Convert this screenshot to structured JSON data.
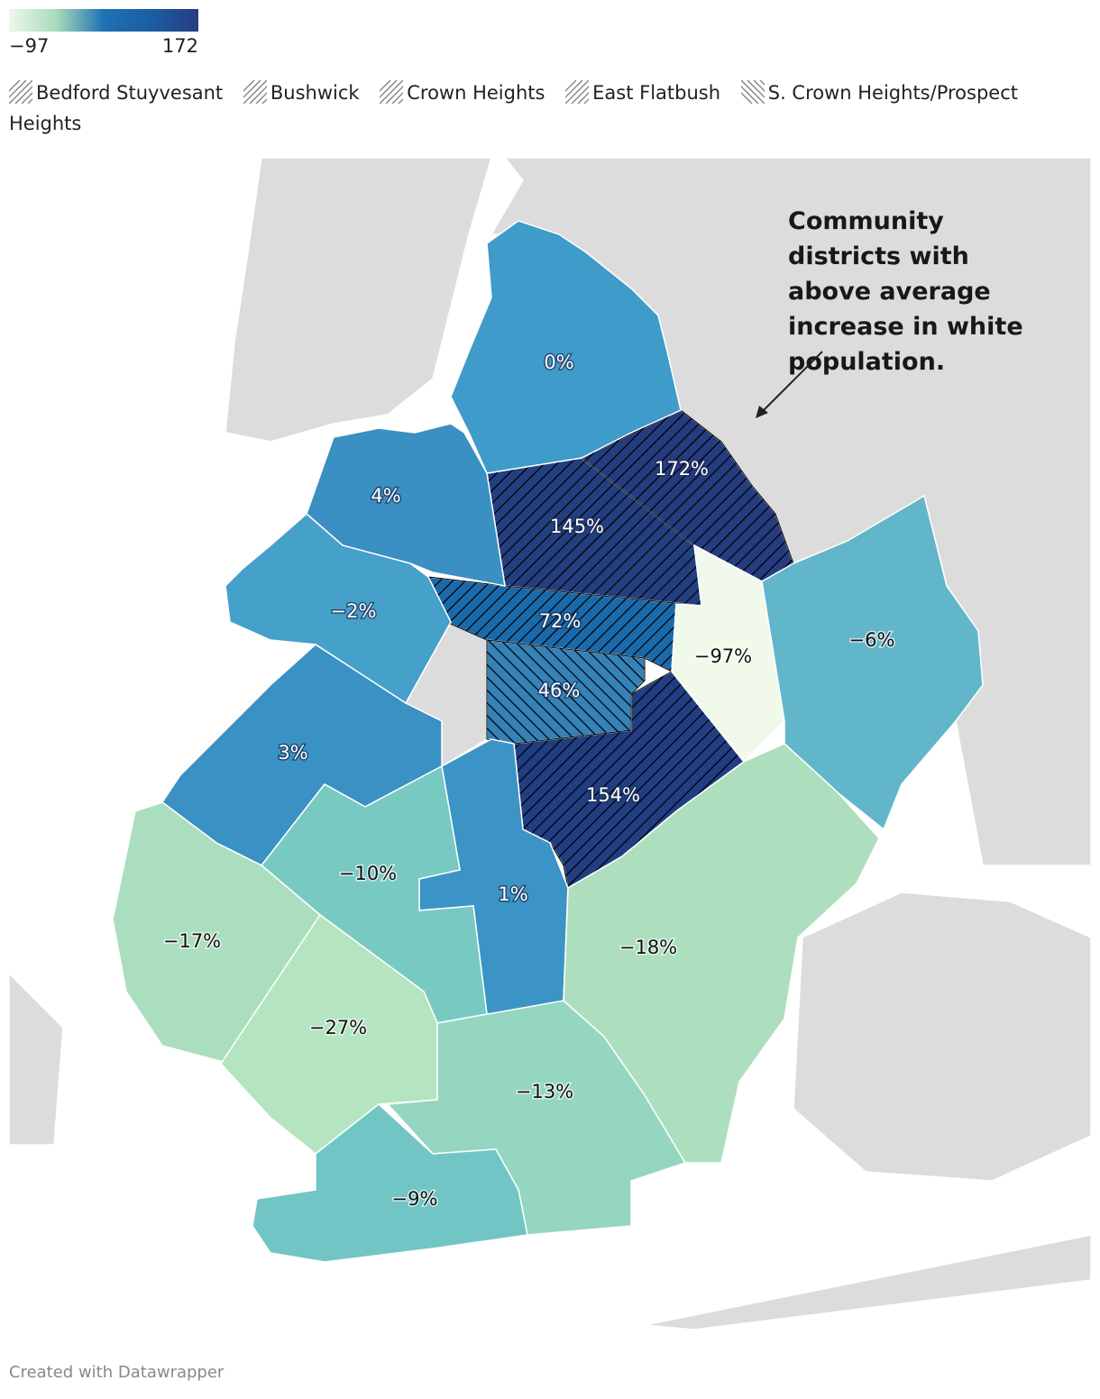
{
  "chart_data": {
    "type": "choropleth",
    "color_scale": {
      "colors": [
        "#eef8e8",
        "#a8dbbd",
        "#1f72b4",
        "#1a5ea2",
        "#253d80"
      ],
      "ticks": [
        {
          "value": -97,
          "label": "−97"
        },
        172
      ]
    },
    "annotation": "Community districts with above average increase in white population.",
    "districts": [
      {
        "name": "Bedford Stuyvesant",
        "value": 145,
        "value_label": "145%",
        "color": "#243f80",
        "hatch": "up"
      },
      {
        "name": "Bushwick",
        "value": 172,
        "value_label": "172%",
        "color": "#253c80",
        "hatch": "up"
      },
      {
        "name": "Crown Heights",
        "value": 72,
        "value_label": "72%",
        "color": "#1a6aab",
        "hatch": "up"
      },
      {
        "name": "East Flatbush",
        "value": 154,
        "value_label": "154%",
        "color": "#213e82",
        "hatch": "up"
      },
      {
        "name": "S. Crown Heights/Prospect Heights",
        "value": 46,
        "value_label": "46%",
        "color": "#3482b8",
        "hatch": "down"
      },
      {
        "value": 0,
        "value_label": "0%",
        "color": "#3f9bc9"
      },
      {
        "value": 4,
        "value_label": "4%",
        "color": "#3a8fc3"
      },
      {
        "value": -2,
        "value_label": "−2%",
        "color": "#45a0ca"
      },
      {
        "value": -97,
        "value_label": "−97%",
        "color": "#f1f9ea"
      },
      {
        "value": -6,
        "value_label": "−6%",
        "color": "#62b6c9"
      },
      {
        "value": 3,
        "value_label": "3%",
        "color": "#3a91c4"
      },
      {
        "value": 1,
        "value_label": "1%",
        "color": "#3b94c5"
      },
      {
        "value": -10,
        "value_label": "−10%",
        "color": "#79c9c3"
      },
      {
        "value": -17,
        "value_label": "−17%",
        "color": "#abdebe"
      },
      {
        "value": -27,
        "value_label": "−27%",
        "color": "#b5e4c0"
      },
      {
        "value": -13,
        "value_label": "−13%",
        "color": "#95d6c1"
      },
      {
        "value": -18,
        "value_label": "−18%",
        "color": "#addfbe"
      },
      {
        "value": -9,
        "value_label": "−9%",
        "color": "#72c5c5"
      }
    ]
  },
  "footer": "Created with Datawrapper"
}
